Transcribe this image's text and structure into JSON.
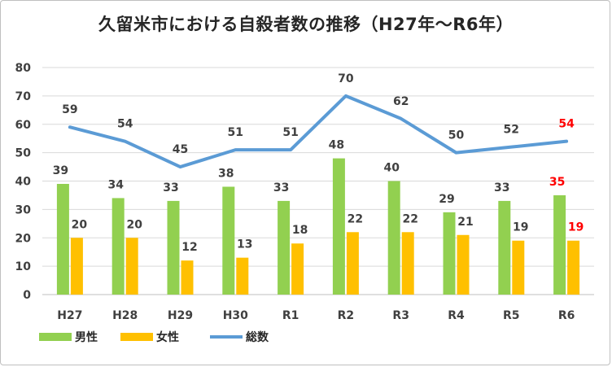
{
  "chart_data": {
    "type": "bar",
    "title": "久留米市における自殺者数の推移（H27年～R6年）",
    "categories": [
      "H27",
      "H28",
      "H29",
      "H30",
      "R1",
      "R2",
      "R3",
      "R4",
      "R5",
      "R6"
    ],
    "series": [
      {
        "name": "男性",
        "type": "bar",
        "color": "#92d050",
        "values": [
          39,
          34,
          33,
          38,
          33,
          48,
          40,
          29,
          33,
          35
        ]
      },
      {
        "name": "女性",
        "type": "bar",
        "color": "#ffc000",
        "values": [
          20,
          20,
          12,
          13,
          18,
          22,
          22,
          21,
          19,
          19
        ]
      },
      {
        "name": "総数",
        "type": "line",
        "color": "#5b9bd5",
        "values": [
          59,
          54,
          45,
          51,
          51,
          70,
          62,
          50,
          52,
          54
        ]
      }
    ],
    "ylim": [
      0,
      80
    ],
    "yticks": [
      0,
      10,
      20,
      30,
      40,
      50,
      60,
      70,
      80
    ],
    "grid": true,
    "legend": "bottom-left",
    "highlight_category": "R6",
    "highlight_color": "#ff0000"
  }
}
